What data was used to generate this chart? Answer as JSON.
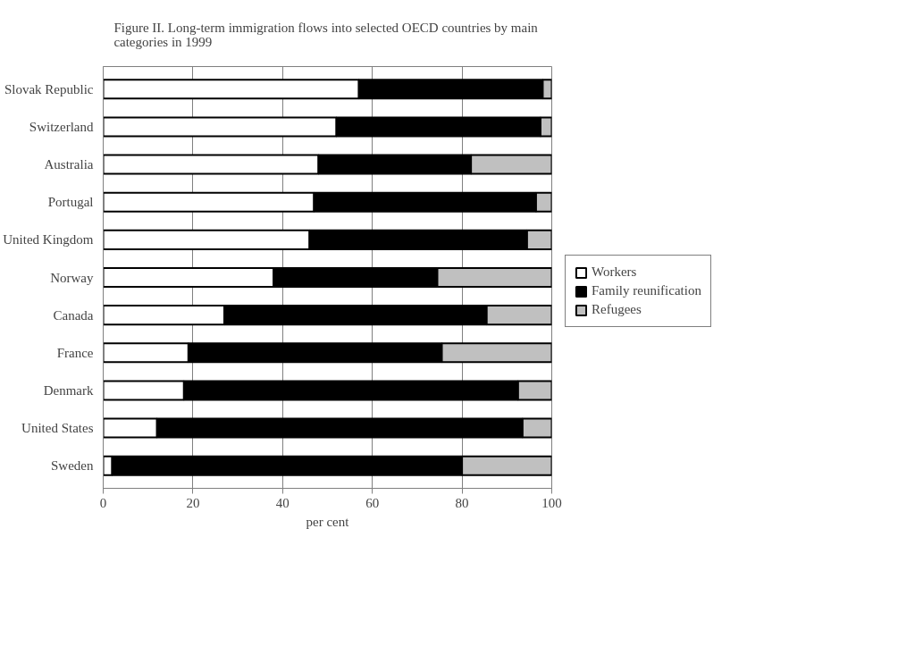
{
  "chart_data": {
    "type": "bar",
    "orientation": "horizontal",
    "stacked": true,
    "title": "Figure II.  Long-term immigration flows into selected OECD countries by main categories in 1999",
    "xlabel": "per cent",
    "categories": [
      "Slovak Republic",
      "Switzerland",
      "Australia",
      "Portugal",
      "United Kingdom",
      "Norway",
      "Canada",
      "France",
      "Denmark",
      "United States",
      "Sweden"
    ],
    "series": [
      {
        "name": "Workers",
        "color": "#ffffff",
        "values": [
          57,
          52,
          48,
          47,
          46,
          38,
          27,
          19,
          18,
          12,
          2
        ]
      },
      {
        "name": "Family reunification",
        "color": "#000000",
        "values": [
          41,
          45.5,
          34,
          49.5,
          48.5,
          36.5,
          58.5,
          56.5,
          74.5,
          81.5,
          78
        ]
      },
      {
        "name": "Refugees",
        "color": "#c0c0c0",
        "values": [
          2,
          2.5,
          18,
          3.5,
          5.5,
          25.5,
          14.5,
          24.5,
          7.5,
          6.5,
          20
        ]
      }
    ],
    "xlim": [
      0,
      100
    ],
    "xticks": [
      0,
      20,
      40,
      60,
      80,
      100
    ],
    "grid": "x",
    "legend": "right"
  }
}
